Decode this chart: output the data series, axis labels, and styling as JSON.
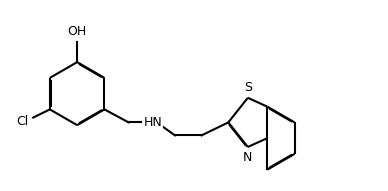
{
  "bg_color": "#ffffff",
  "bond_color": "#000000",
  "lw": 1.5,
  "dbo": 0.018,
  "figsize": [
    3.88,
    1.91
  ],
  "dpi": 100,
  "xlim": [
    0,
    10
  ],
  "ylim": [
    0,
    5
  ]
}
